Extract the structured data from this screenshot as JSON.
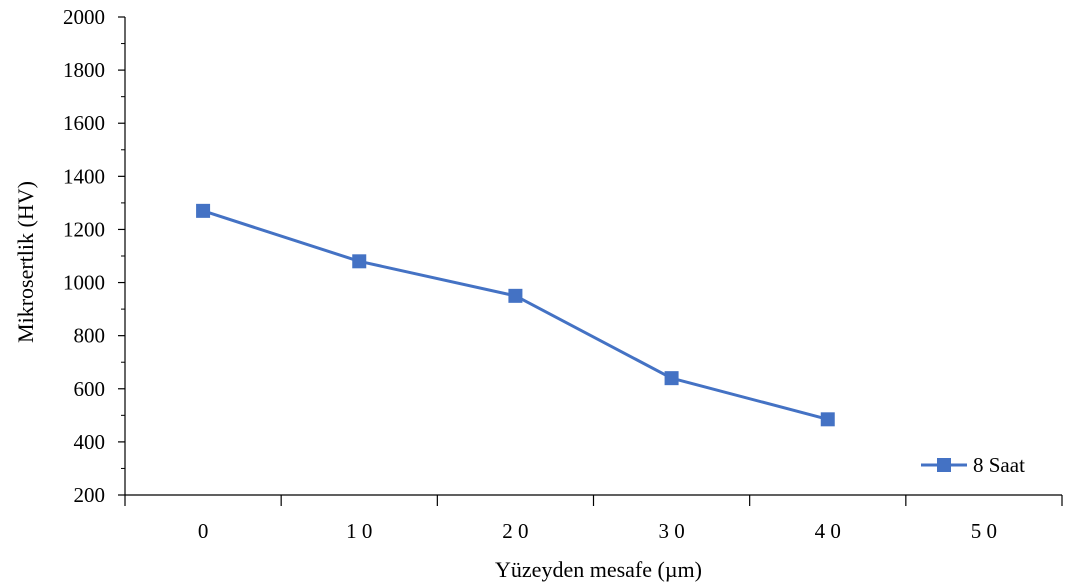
{
  "chart_data": {
    "type": "line",
    "title": "",
    "xlabel": "Yüzeyden mesafe (µm)",
    "ylabel": "Mikrosertlik (HV)",
    "xlim": [
      -5,
      55
    ],
    "ylim": [
      200,
      2000
    ],
    "x_ticks": [
      0,
      10,
      20,
      30,
      40,
      50
    ],
    "x_tick_labels": [
      "0",
      "1 0",
      "2 0",
      "3 0",
      "4 0",
      "5 0"
    ],
    "y_ticks": [
      200,
      400,
      600,
      800,
      1000,
      1200,
      1400,
      1600,
      1800,
      2000
    ],
    "y_tick_labels": [
      "200",
      "400",
      "600",
      "800",
      "1000",
      "1200",
      "1400",
      "1600",
      "1800",
      "2000"
    ],
    "grid": false,
    "legend_position": "bottom-right",
    "series": [
      {
        "name": "8 Saat",
        "color": "#4472C4",
        "marker": "square",
        "x": [
          0,
          10,
          20,
          30,
          40
        ],
        "y": [
          1270,
          1080,
          950,
          640,
          485
        ]
      }
    ]
  }
}
